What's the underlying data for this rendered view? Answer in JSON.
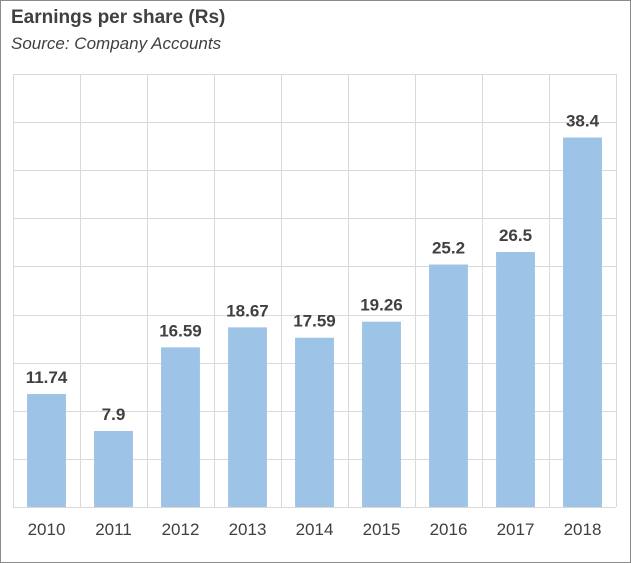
{
  "chart_data": {
    "type": "bar",
    "title": "Earnings per share (Rs)",
    "subtitle": "Source: Company Accounts",
    "categories": [
      "2010",
      "2011",
      "2012",
      "2013",
      "2014",
      "2015",
      "2016",
      "2017",
      "2018"
    ],
    "values": [
      11.74,
      7.9,
      16.59,
      18.67,
      17.59,
      19.26,
      25.2,
      26.5,
      38.4
    ],
    "data_labels": [
      "11.74",
      "7.9",
      "16.59",
      "18.67",
      "17.59",
      "19.26",
      "25.2",
      "26.5",
      "38.4"
    ],
    "xlabel": "",
    "ylabel": "",
    "ylim": [
      0,
      45
    ],
    "grid": true,
    "legend": "none",
    "colors": {
      "bar": "#9DC3E6",
      "grid": "#D9D9D9",
      "text": "#404040",
      "frame": "#8A8A8A"
    }
  }
}
